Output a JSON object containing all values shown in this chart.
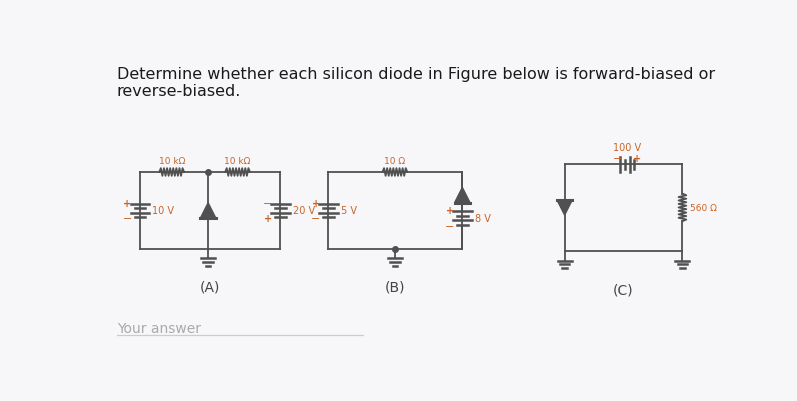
{
  "bg_color": "#f7f7f9",
  "title_line1": "Determine whether each silicon diode in Figure below is forward-biased or",
  "title_line2": "reverse-biased.",
  "title_color": "#1a1a1a",
  "label_color": "#c86428",
  "circuit_color": "#505050",
  "label_A": "(A)",
  "label_B": "(B)",
  "label_C": "(C)",
  "your_answer": "Your answer"
}
